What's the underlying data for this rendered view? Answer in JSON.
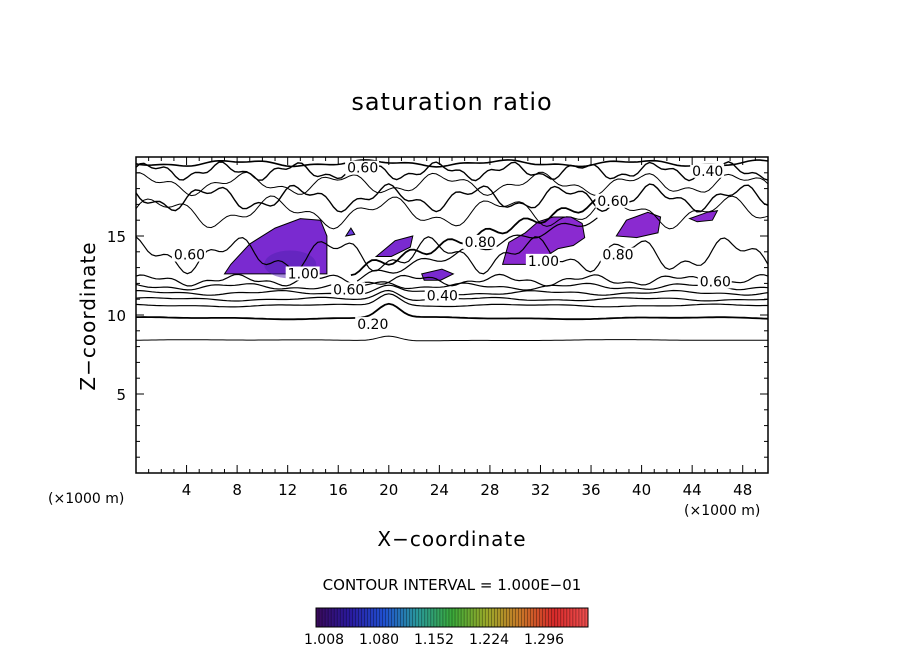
{
  "chart_data": {
    "type": "contour",
    "title": "saturation ratio",
    "xlabel": "X−coordinate",
    "ylabel": "Z−coordinate",
    "x_unit_label": "(×1000 m)",
    "xlim": [
      0,
      50
    ],
    "ylim": [
      0,
      20
    ],
    "x_ticks": [
      "4",
      "8",
      "12",
      "16",
      "20",
      "24",
      "28",
      "32",
      "36",
      "40",
      "44",
      "48"
    ],
    "y_ticks": [
      "5",
      "10",
      "15"
    ],
    "contour_interval_text": "CONTOUR INTERVAL = 1.000E−01",
    "contour_labels": [
      {
        "text": "0.60",
        "x": 16.7,
        "z": 19.2
      },
      {
        "text": "0.40",
        "x": 44.0,
        "z": 19.0
      },
      {
        "text": "0.60",
        "x": 36.5,
        "z": 17.1
      },
      {
        "text": "0.80",
        "x": 36.9,
        "z": 13.7
      },
      {
        "text": "0.60",
        "x": 44.6,
        "z": 12.0
      },
      {
        "text": "0.60",
        "x": 3.0,
        "z": 13.7
      },
      {
        "text": "1.00",
        "x": 12.0,
        "z": 12.5
      },
      {
        "text": "0.60",
        "x": 15.6,
        "z": 11.5
      },
      {
        "text": "0.40",
        "x": 23.0,
        "z": 11.1
      },
      {
        "text": "0.20",
        "x": 17.5,
        "z": 9.3
      },
      {
        "text": "0.80",
        "x": 26.0,
        "z": 14.5
      },
      {
        "text": "1.00",
        "x": 31.0,
        "z": 13.3
      }
    ],
    "colorbar": {
      "ticks": [
        "1.008",
        "1.080",
        "1.152",
        "1.224",
        "1.296"
      ],
      "colormap": [
        "#3a0a5a",
        "#2a1aa0",
        "#2050d0",
        "#2a9a9a",
        "#3aaa3a",
        "#9aaa2a",
        "#c87828",
        "#d82a2a",
        "#f05050"
      ]
    },
    "filled_regions": [
      {
        "name": "region-1",
        "color": "#7a2ad0",
        "shape": [
          [
            7.0,
            12.6
          ],
          [
            7.5,
            13.2
          ],
          [
            9,
            14.5
          ],
          [
            11,
            15.5
          ],
          [
            13,
            16.1
          ],
          [
            14.6,
            16.0
          ],
          [
            15.1,
            15.0
          ],
          [
            15.1,
            12.6
          ]
        ]
      },
      {
        "name": "region-2",
        "color": "#7a2ad0",
        "shape": [
          [
            19.0,
            13.7
          ],
          [
            20.5,
            14.7
          ],
          [
            21.9,
            15.0
          ],
          [
            21.7,
            14.3
          ],
          [
            20.2,
            13.7
          ]
        ]
      },
      {
        "name": "region-3",
        "color": "#7a2ad0",
        "shape": [
          [
            22.6,
            12.6
          ],
          [
            24.2,
            12.9
          ],
          [
            25.1,
            12.6
          ],
          [
            24.1,
            12.2
          ],
          [
            22.8,
            12.2
          ]
        ]
      },
      {
        "name": "region-4",
        "color": "#8a2ad0",
        "shape": [
          [
            29.0,
            13.2
          ],
          [
            29.5,
            14.6
          ],
          [
            30.8,
            15.2
          ],
          [
            31.8,
            15.9
          ],
          [
            33.0,
            16.2
          ],
          [
            34.4,
            16.2
          ],
          [
            35.3,
            15.8
          ],
          [
            35.5,
            14.9
          ],
          [
            34.6,
            14.4
          ],
          [
            33.4,
            14.2
          ],
          [
            32.2,
            13.6
          ],
          [
            31.0,
            13.2
          ]
        ]
      },
      {
        "name": "region-5",
        "color": "#8a2ad0",
        "shape": [
          [
            38.0,
            15.0
          ],
          [
            38.8,
            16.0
          ],
          [
            40.5,
            16.5
          ],
          [
            41.5,
            16.2
          ],
          [
            41.3,
            15.2
          ],
          [
            39.6,
            14.9
          ]
        ]
      },
      {
        "name": "region-6",
        "color": "#8a2ad0",
        "shape": [
          [
            43.8,
            16.1
          ],
          [
            45.2,
            16.5
          ],
          [
            46.0,
            16.6
          ],
          [
            45.6,
            16.0
          ],
          [
            44.4,
            15.9
          ]
        ]
      },
      {
        "name": "region-7",
        "color": "#6a3ae0",
        "shape": [
          [
            16.6,
            15.0
          ],
          [
            17.0,
            15.5
          ],
          [
            17.3,
            15.1
          ]
        ]
      }
    ]
  }
}
